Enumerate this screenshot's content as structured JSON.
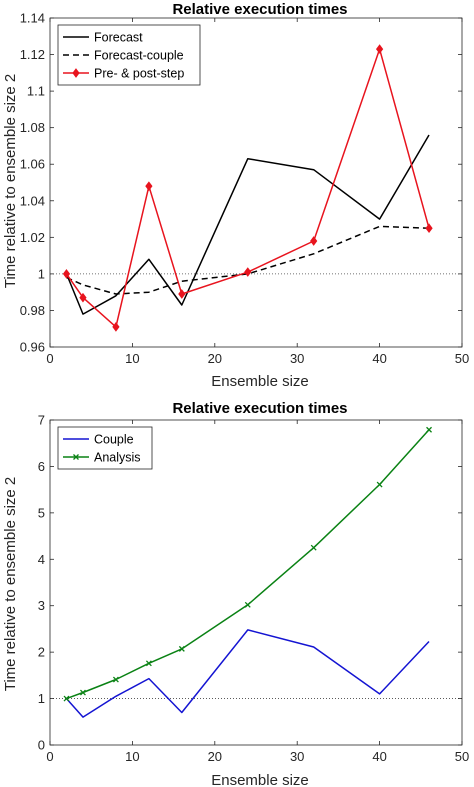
{
  "chart_data": [
    {
      "type": "line",
      "title": "Relative execution times",
      "xlabel": "Ensemble size",
      "ylabel": "Time relative to ensemble size 2",
      "xlim": [
        0,
        50
      ],
      "ylim": [
        0.96,
        1.14
      ],
      "xticks": [
        0,
        10,
        20,
        30,
        40,
        50
      ],
      "yticks": [
        0.96,
        0.98,
        1,
        1.02,
        1.04,
        1.06,
        1.08,
        1.1,
        1.12,
        1.14
      ],
      "ytick_labels": [
        "0.96",
        "0.98",
        "1",
        "1.02",
        "1.04",
        "1.06",
        "1.08",
        "1.1",
        "1.12",
        "1.14"
      ],
      "reference_line": 1,
      "legend_position": "top-left",
      "series": [
        {
          "name": "Forecast",
          "color": "#000000",
          "style": "solid",
          "marker": "none",
          "x": [
            2,
            4,
            8,
            12,
            16,
            24,
            32,
            40,
            46
          ],
          "y": [
            1.0,
            0.978,
            0.988,
            1.008,
            0.983,
            1.063,
            1.057,
            1.03,
            1.076
          ]
        },
        {
          "name": "Forecast-couple",
          "color": "#000000",
          "style": "dashed",
          "marker": "none",
          "x": [
            2,
            4,
            8,
            12,
            16,
            24,
            32,
            40,
            46
          ],
          "y": [
            0.998,
            0.994,
            0.989,
            0.99,
            0.996,
            1.0,
            1.011,
            1.026,
            1.025
          ]
        },
        {
          "name": "Pre- & post-step",
          "color": "#e8141e",
          "style": "solid",
          "marker": "diamond",
          "x": [
            2,
            4,
            8,
            12,
            16,
            24,
            32,
            40,
            46
          ],
          "y": [
            1.0,
            0.987,
            0.971,
            1.048,
            0.989,
            1.001,
            1.018,
            1.123,
            1.025
          ]
        }
      ]
    },
    {
      "type": "line",
      "title": "Relative execution times",
      "xlabel": "Ensemble size",
      "ylabel": "Time relative to ensemble size 2",
      "xlim": [
        0,
        50
      ],
      "ylim": [
        0,
        7
      ],
      "xticks": [
        0,
        10,
        20,
        30,
        40,
        50
      ],
      "yticks": [
        0,
        1,
        2,
        3,
        4,
        5,
        6,
        7
      ],
      "ytick_labels": [
        "0",
        "1",
        "2",
        "3",
        "4",
        "5",
        "6",
        "7"
      ],
      "reference_line": 1,
      "legend_position": "top-left",
      "series": [
        {
          "name": "Couple",
          "color": "#1414d2",
          "style": "solid",
          "marker": "none",
          "x": [
            2,
            4,
            8,
            12,
            16,
            24,
            32,
            40,
            46
          ],
          "y": [
            1.0,
            0.6,
            1.05,
            1.43,
            0.7,
            2.48,
            2.11,
            1.1,
            2.23
          ]
        },
        {
          "name": "Analysis",
          "color": "#0a8214",
          "style": "solid",
          "marker": "x",
          "x": [
            2,
            4,
            8,
            12,
            16,
            24,
            32,
            40,
            46
          ],
          "y": [
            1.0,
            1.13,
            1.41,
            1.76,
            2.07,
            3.02,
            4.25,
            5.61,
            6.79
          ]
        }
      ]
    }
  ]
}
